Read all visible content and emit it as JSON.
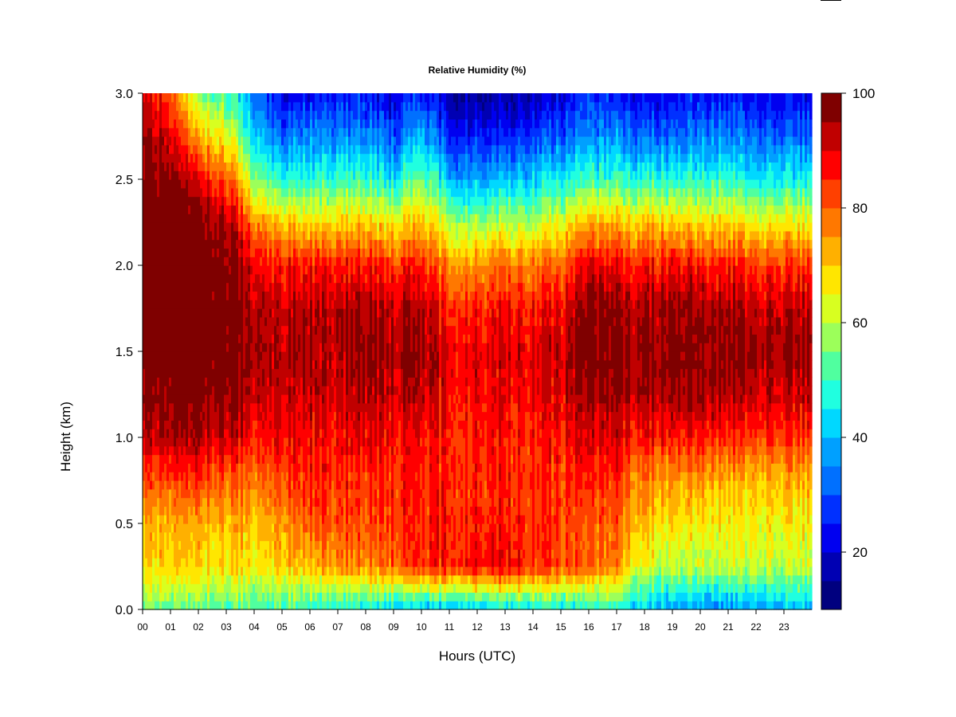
{
  "chart_data": {
    "type": "heatmap",
    "title": "Relative Humidity (%)",
    "xlabel": "Hours (UTC)",
    "ylabel": "Height (km)",
    "xlim": [
      0,
      24
    ],
    "ylim": [
      0,
      3.0
    ],
    "x_ticks": [
      "00",
      "01",
      "02",
      "03",
      "04",
      "05",
      "06",
      "07",
      "08",
      "09",
      "10",
      "11",
      "12",
      "13",
      "14",
      "15",
      "16",
      "17",
      "18",
      "19",
      "20",
      "21",
      "22",
      "23"
    ],
    "y_ticks": [
      "0.0",
      "0.5",
      "1.0",
      "1.5",
      "2.0",
      "2.5",
      "3.0"
    ],
    "colorbar": {
      "levels": [
        10,
        15,
        20,
        25,
        30,
        35,
        40,
        45,
        50,
        55,
        60,
        65,
        70,
        75,
        80,
        85,
        90,
        95,
        100
      ],
      "colors": [
        "#00007f",
        "#0000b3",
        "#0000f0",
        "#0030ff",
        "#0070ff",
        "#00a0ff",
        "#00d8ff",
        "#20ffe0",
        "#50ff9f",
        "#9cff5a",
        "#d8ff20",
        "#ffe600",
        "#ffb000",
        "#ff7800",
        "#ff4000",
        "#ff0000",
        "#c00000",
        "#7f0000"
      ],
      "tick_labels": [
        "20",
        "40",
        "60",
        "80",
        "100"
      ],
      "tick_values": [
        20,
        40,
        60,
        80,
        100
      ]
    },
    "x_hours": [
      0,
      1,
      2,
      3,
      4,
      5,
      6,
      7,
      8,
      9,
      10,
      11,
      12,
      13,
      14,
      15,
      16,
      17,
      18,
      19,
      20,
      21,
      22,
      23,
      24
    ],
    "heights_km": [
      0.0,
      0.25,
      0.5,
      0.75,
      1.0,
      1.25,
      1.5,
      1.75,
      2.0,
      2.25,
      2.5,
      2.75,
      3.0
    ],
    "rh_percent_by_hour": [
      [
        55,
        68,
        72,
        80,
        92,
        97,
        100,
        100,
        100,
        100,
        98,
        95,
        92
      ],
      [
        52,
        68,
        72,
        82,
        93,
        97,
        100,
        100,
        100,
        100,
        98,
        90,
        80
      ],
      [
        52,
        68,
        72,
        82,
        93,
        98,
        100,
        100,
        100,
        98,
        88,
        72,
        55
      ],
      [
        52,
        68,
        72,
        80,
        92,
        98,
        100,
        100,
        100,
        96,
        82,
        65,
        50
      ],
      [
        52,
        66,
        72,
        78,
        88,
        93,
        96,
        95,
        90,
        78,
        58,
        45,
        35
      ],
      [
        50,
        70,
        76,
        82,
        88,
        92,
        94,
        92,
        86,
        70,
        48,
        32,
        20
      ],
      [
        48,
        70,
        80,
        84,
        88,
        92,
        94,
        93,
        86,
        68,
        48,
        35,
        22
      ],
      [
        46,
        76,
        82,
        84,
        88,
        92,
        95,
        93,
        86,
        70,
        50,
        35,
        25
      ],
      [
        46,
        76,
        82,
        85,
        90,
        94,
        97,
        95,
        88,
        70,
        50,
        35,
        25
      ],
      [
        42,
        80,
        85,
        85,
        88,
        92,
        95,
        92,
        84,
        66,
        45,
        30,
        20
      ],
      [
        40,
        85,
        85,
        86,
        88,
        93,
        97,
        94,
        86,
        72,
        55,
        40,
        28
      ],
      [
        40,
        86,
        86,
        85,
        86,
        88,
        90,
        85,
        75,
        60,
        40,
        25,
        15
      ],
      [
        42,
        88,
        86,
        85,
        86,
        88,
        90,
        86,
        76,
        58,
        38,
        25,
        15
      ],
      [
        44,
        88,
        86,
        85,
        86,
        89,
        91,
        87,
        78,
        60,
        40,
        25,
        15
      ],
      [
        46,
        84,
        85,
        84,
        86,
        88,
        90,
        86,
        78,
        60,
        42,
        28,
        18
      ],
      [
        44,
        82,
        82,
        84,
        86,
        90,
        92,
        88,
        80,
        64,
        45,
        30,
        20
      ],
      [
        46,
        78,
        80,
        84,
        90,
        96,
        99,
        97,
        90,
        72,
        50,
        35,
        25
      ],
      [
        48,
        76,
        80,
        84,
        90,
        96,
        98,
        96,
        88,
        72,
        50,
        35,
        25
      ],
      [
        40,
        62,
        70,
        76,
        86,
        94,
        96,
        94,
        86,
        70,
        48,
        32,
        22
      ],
      [
        38,
        60,
        68,
        74,
        86,
        95,
        98,
        96,
        88,
        70,
        48,
        32,
        22
      ],
      [
        35,
        60,
        66,
        74,
        86,
        94,
        97,
        95,
        86,
        68,
        48,
        34,
        24
      ],
      [
        35,
        60,
        66,
        72,
        84,
        94,
        97,
        95,
        86,
        68,
        48,
        34,
        24
      ],
      [
        38,
        62,
        66,
        72,
        84,
        92,
        96,
        93,
        84,
        66,
        46,
        32,
        22
      ],
      [
        40,
        60,
        66,
        72,
        84,
        92,
        96,
        93,
        84,
        66,
        46,
        32,
        22
      ],
      [
        40,
        60,
        66,
        72,
        84,
        92,
        96,
        93,
        84,
        66,
        46,
        32,
        22
      ]
    ]
  }
}
